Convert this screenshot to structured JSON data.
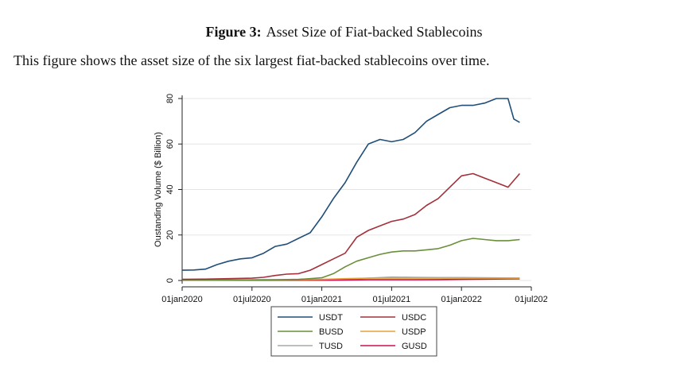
{
  "caption": {
    "label": "Figure 3:",
    "title": "Asset Size of Fiat-backed Stablecoins",
    "description": "This figure shows the asset size of the six largest fiat-backed stablecoins over time."
  },
  "chart_data": {
    "type": "line",
    "title": "",
    "xlabel": "",
    "ylabel": "Oustanding Volume ($ Billion)",
    "xlim": [
      0,
      30
    ],
    "ylim": [
      0,
      80
    ],
    "x_unit": "months since 01jan2020",
    "x_ticks": [
      {
        "pos": 0,
        "label": "01jan2020"
      },
      {
        "pos": 6,
        "label": "01jul2020"
      },
      {
        "pos": 12,
        "label": "01jan2021"
      },
      {
        "pos": 18,
        "label": "01jul2021"
      },
      {
        "pos": 24,
        "label": "01jan2022"
      },
      {
        "pos": 30,
        "label": "01jul202"
      }
    ],
    "y_ticks": [
      0,
      20,
      40,
      60,
      80
    ],
    "grid": true,
    "legend_placement": "bottom",
    "series": [
      {
        "name": "USDT",
        "color": "#1f4e79",
        "x": [
          0,
          1,
          2,
          3,
          4,
          5,
          6,
          7,
          8,
          9,
          10,
          11,
          12,
          13,
          14,
          15,
          16,
          17,
          18,
          19,
          20,
          21,
          22,
          23,
          24,
          25,
          26,
          27,
          28,
          28.5,
          29
        ],
        "y": [
          4.5,
          4.6,
          5,
          7,
          8.5,
          9.5,
          10,
          12,
          15,
          16,
          18.5,
          21,
          28,
          36,
          43,
          52,
          60,
          62,
          61,
          62,
          65,
          70,
          73,
          76,
          77,
          77,
          78,
          80,
          80,
          71,
          69.5
        ]
      },
      {
        "name": "USDC",
        "color": "#a3303a",
        "x": [
          0,
          2,
          4,
          6,
          7,
          8,
          9,
          10,
          11,
          12,
          13,
          14,
          15,
          16,
          17,
          18,
          19,
          20,
          21,
          22,
          23,
          24,
          25,
          26,
          27,
          28,
          29
        ],
        "y": [
          0.5,
          0.6,
          0.8,
          1.0,
          1.4,
          2.2,
          2.8,
          3.0,
          4.5,
          7.0,
          9.5,
          12,
          19,
          22,
          24,
          26,
          27,
          29,
          33,
          36,
          41,
          46,
          47,
          45,
          43,
          41,
          47
        ]
      },
      {
        "name": "BUSD",
        "color": "#6a8f3a",
        "x": [
          0,
          4,
          8,
          10,
          11,
          12,
          13,
          14,
          15,
          16,
          17,
          18,
          19,
          20,
          21,
          22,
          23,
          24,
          25,
          26,
          27,
          28,
          29
        ],
        "y": [
          0.1,
          0.2,
          0.3,
          0.5,
          0.8,
          1.2,
          3.0,
          6.0,
          8.5,
          10,
          11.5,
          12.5,
          13,
          13,
          13.5,
          14,
          15.5,
          17.5,
          18.5,
          18,
          17.5,
          17.5,
          18
        ]
      },
      {
        "name": "USDP",
        "color": "#e5a13c",
        "x": [
          0,
          8,
          12,
          14,
          16,
          18,
          20,
          22,
          24,
          26,
          29
        ],
        "y": [
          0.2,
          0.3,
          0.5,
          0.8,
          1.0,
          1.0,
          1.0,
          1.0,
          1.0,
          1.0,
          1.0
        ]
      },
      {
        "name": "TUSD",
        "color": "#a9a9a9",
        "x": [
          0,
          8,
          12,
          14,
          16,
          18,
          20,
          22,
          24,
          26,
          29
        ],
        "y": [
          0.1,
          0.2,
          0.3,
          0.4,
          1.0,
          1.5,
          1.4,
          1.3,
          1.3,
          1.2,
          1.1
        ]
      },
      {
        "name": "GUSD",
        "color": "#c8104f",
        "x": [
          0,
          8,
          12,
          14,
          16,
          18,
          20,
          22,
          24,
          26,
          29
        ],
        "y": [
          0.1,
          0.1,
          0.1,
          0.2,
          0.3,
          0.3,
          0.3,
          0.4,
          0.5,
          0.6,
          0.7
        ]
      }
    ]
  }
}
